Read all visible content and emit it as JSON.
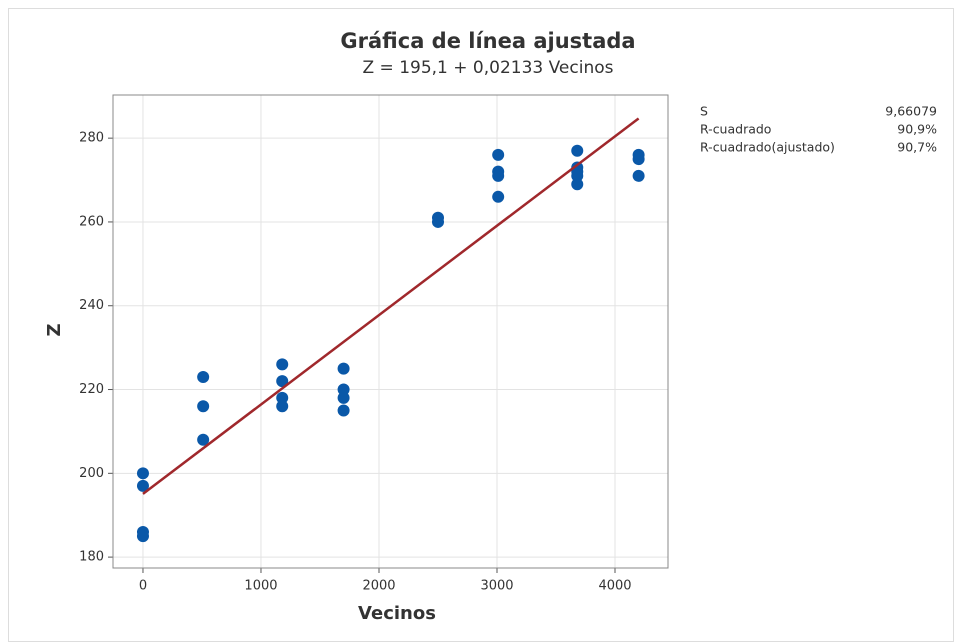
{
  "chart_data": {
    "type": "scatter",
    "title": "Gráfica de línea ajustada",
    "subtitle": "Z = 195,1 + 0,02133 Vecinos",
    "x_label": "Vecinos",
    "y_label": "Z",
    "series": [
      {
        "type": "scatter",
        "color": "#0a58a8",
        "x": [
          0,
          0,
          0,
          0,
          510,
          510,
          510,
          1180,
          1180,
          1180,
          1180,
          1700,
          1700,
          1700,
          1700,
          2500,
          2500,
          3010,
          3010,
          3010,
          3010,
          3680,
          3680,
          3680,
          3680,
          3680,
          4200,
          4200,
          4200
        ],
        "values": [
          200,
          197,
          186,
          185,
          223,
          216,
          208,
          226,
          222,
          218,
          216,
          225,
          220,
          218,
          215,
          261,
          260,
          276,
          272,
          271,
          266,
          277,
          273,
          272,
          271,
          269,
          276,
          275,
          271
        ]
      },
      {
        "type": "line",
        "color": "#a0282c",
        "x": [
          0,
          4200
        ],
        "values": [
          195.1,
          284.7
        ]
      }
    ],
    "xlim": [
      -254,
      4449
    ],
    "xticks": [
      0,
      1000,
      2000,
      3000,
      4000
    ],
    "ylim": [
      177.4,
      290.3
    ],
    "yticks": [
      180,
      200,
      220,
      240,
      260,
      280
    ],
    "grid": true,
    "stats": [
      {
        "label": "S",
        "value": "9,66079"
      },
      {
        "label": "R-cuadrado",
        "value": "90,9%"
      },
      {
        "label": "R-cuadrado(ajustado)",
        "value": "90,7%"
      }
    ]
  }
}
